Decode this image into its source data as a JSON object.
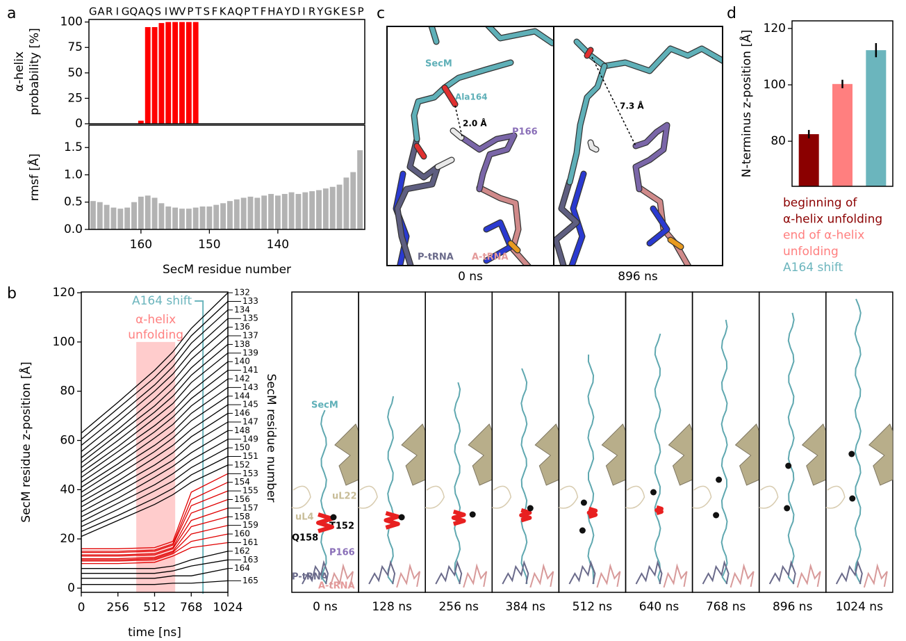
{
  "chart_data": [
    {
      "panel_label": "a",
      "type": "bar",
      "sequence": [
        "G",
        "A",
        "R",
        "I",
        "G",
        "Q",
        "A",
        "Q",
        "S",
        "I",
        "W",
        "V",
        "P",
        "T",
        "S",
        "F",
        "K",
        "A",
        "Q",
        "P",
        "T",
        "F",
        "H",
        "A",
        "Y",
        "D",
        "I",
        "R",
        "Y",
        "G",
        "K",
        "E",
        "S",
        "P"
      ],
      "x": [
        167,
        166,
        165,
        164,
        163,
        162,
        161,
        160,
        159,
        158,
        157,
        156,
        155,
        154,
        153,
        152,
        151,
        150,
        149,
        148,
        147,
        146,
        145,
        144,
        143,
        142,
        141,
        140,
        139,
        138,
        137,
        136,
        135,
        134,
        133,
        132,
        131,
        130,
        129,
        128
      ],
      "values": [
        0,
        0,
        0,
        0,
        0,
        0,
        0,
        3,
        95,
        95,
        99,
        100,
        100,
        100,
        100,
        100,
        0,
        0,
        0,
        0,
        0,
        0,
        0,
        0,
        0,
        0,
        0,
        0,
        0,
        0,
        0,
        0,
        0,
        0,
        0,
        0,
        0,
        0,
        0,
        0
      ],
      "color": "#ff0000",
      "ylabel": [
        "α-helix",
        "probability [%]"
      ],
      "xlim": [
        167.6,
        127.3
      ],
      "ylim": [
        0,
        102.5
      ],
      "yticks": [
        0,
        25,
        50,
        75,
        100
      ]
    },
    {
      "type": "bar",
      "x": [
        167,
        166,
        165,
        164,
        163,
        162,
        161,
        160,
        159,
        158,
        157,
        156,
        155,
        154,
        153,
        152,
        151,
        150,
        149,
        148,
        147,
        146,
        145,
        144,
        143,
        142,
        141,
        140,
        139,
        138,
        137,
        136,
        135,
        134,
        133,
        132,
        131,
        130,
        129,
        128
      ],
      "values": [
        0.52,
        0.5,
        0.45,
        0.4,
        0.38,
        0.4,
        0.5,
        0.6,
        0.62,
        0.58,
        0.48,
        0.42,
        0.4,
        0.38,
        0.38,
        0.4,
        0.42,
        0.42,
        0.45,
        0.48,
        0.52,
        0.55,
        0.58,
        0.6,
        0.58,
        0.62,
        0.65,
        0.62,
        0.65,
        0.68,
        0.65,
        0.68,
        0.7,
        0.72,
        0.75,
        0.78,
        0.82,
        0.95,
        1.05,
        1.45
      ],
      "color": "#b3b3b3",
      "ylabel": "rmsf [Å]",
      "xlabel": "SecM residue number",
      "xlim": [
        167.6,
        127.3
      ],
      "xticks": [
        160,
        150,
        140
      ],
      "ylim": [
        0,
        1.91
      ],
      "yticks": [
        {
          "value": 0,
          "label": "0.0"
        },
        {
          "value": 0.5,
          "label": "0.5"
        },
        {
          "value": 1,
          "label": "1.0"
        },
        {
          "value": 1.5,
          "label": "1.5"
        }
      ]
    },
    {
      "panel_label": "b",
      "type": "line",
      "x": [
        0,
        256,
        512,
        640,
        768,
        1024
      ],
      "xlim": [
        0,
        1024
      ],
      "xticks": [
        0,
        256,
        512,
        768,
        1024
      ],
      "ylim": [
        -1.7,
        120.3
      ],
      "yticks": [
        0,
        20,
        40,
        60,
        80,
        100,
        120
      ],
      "xlabel": "time [ns]",
      "ylabel": "SecM residue z-position [Å]",
      "y2label": "SecM residue number",
      "annotations": [
        {
          "text": [
            "A164 shift"
          ],
          "x": 850,
          "color": "#6bb5bd"
        },
        {
          "text": [
            "α-helix",
            "unfolding"
          ],
          "x": [
            384,
            656
          ],
          "y": 100,
          "color": "#ff8080"
        }
      ],
      "series": [
        {
          "name": "132",
          "color": "#000000",
          "values": [
            63,
            75.5,
            88.5,
            96,
            105.5,
            120
          ]
        },
        {
          "name": "133",
          "color": "#000000",
          "values": [
            60.5,
            73,
            85.5,
            93,
            102.5,
            116.5
          ]
        },
        {
          "name": "134",
          "color": "#000000",
          "values": [
            58,
            70,
            82.5,
            90,
            99.5,
            113
          ]
        },
        {
          "name": "135",
          "color": "#000000",
          "values": [
            55.5,
            67.5,
            80,
            87,
            96,
            109.5
          ]
        },
        {
          "name": "136",
          "color": "#000000",
          "values": [
            53,
            64.5,
            77,
            84,
            93,
            106
          ]
        },
        {
          "name": "137",
          "color": "#000000",
          "values": [
            51,
            62.5,
            74,
            81,
            89.5,
            102.5
          ]
        },
        {
          "name": "138",
          "color": "#000000",
          "values": [
            49,
            60,
            71.5,
            78,
            86.5,
            99
          ]
        },
        {
          "name": "139",
          "color": "#000000",
          "values": [
            47,
            57.5,
            69,
            75,
            83.5,
            95.5
          ]
        },
        {
          "name": "140",
          "color": "#000000",
          "values": [
            45,
            55.5,
            66,
            72,
            80,
            92
          ]
        },
        {
          "name": "141",
          "color": "#000000",
          "values": [
            43,
            53,
            63.5,
            69.5,
            77,
            88.5
          ]
        },
        {
          "name": "142",
          "color": "#000000",
          "values": [
            41,
            50.5,
            61,
            66.5,
            74,
            85
          ]
        },
        {
          "name": "143",
          "color": "#000000",
          "values": [
            39,
            48.5,
            58,
            63.5,
            71,
            81.5
          ]
        },
        {
          "name": "144",
          "color": "#000000",
          "values": [
            37,
            46,
            55.5,
            61,
            68,
            78
          ]
        },
        {
          "name": "145",
          "color": "#000000",
          "values": [
            35,
            43.5,
            53,
            58,
            64.5,
            74.5
          ]
        },
        {
          "name": "146",
          "color": "#000000",
          "values": [
            33,
            41.5,
            50,
            55,
            61.5,
            71
          ]
        },
        {
          "name": "147",
          "color": "#000000",
          "values": [
            31,
            39,
            47.5,
            52,
            58.5,
            67.5
          ]
        },
        {
          "name": "148",
          "color": "#000000",
          "values": [
            29,
            36.5,
            45,
            49.5,
            55,
            64
          ]
        },
        {
          "name": "149",
          "color": "#000000",
          "values": [
            27,
            34.5,
            42,
            46.5,
            52,
            60.5
          ]
        },
        {
          "name": "150",
          "color": "#000000",
          "values": [
            25,
            32,
            39.5,
            43.5,
            49,
            57
          ]
        },
        {
          "name": "151",
          "color": "#000000",
          "values": [
            23,
            29.5,
            36.5,
            40.5,
            46,
            53.5
          ]
        },
        {
          "name": "152",
          "color": "#000000",
          "values": [
            21,
            27.5,
            34,
            38,
            43,
            50
          ]
        },
        {
          "name": "153",
          "color": "#e00000",
          "values": [
            16,
            16,
            16.5,
            19,
            39,
            46.5
          ]
        },
        {
          "name": "154",
          "color": "#e00000",
          "values": [
            15,
            15,
            15.5,
            18,
            36,
            43
          ]
        },
        {
          "name": "155",
          "color": "#e00000",
          "values": [
            14.5,
            14.5,
            15,
            17.5,
            33.5,
            39.5
          ]
        },
        {
          "name": "156",
          "color": "#e00000",
          "values": [
            13.5,
            13.5,
            14,
            16.5,
            30.5,
            36
          ]
        },
        {
          "name": "157",
          "color": "#e00000",
          "values": [
            13,
            13,
            13.5,
            16,
            27.5,
            32.5
          ]
        },
        {
          "name": "158",
          "color": "#e00000",
          "values": [
            12,
            12,
            12.5,
            15,
            25,
            29
          ]
        },
        {
          "name": "159",
          "color": "#e00000",
          "values": [
            11.5,
            11.5,
            12,
            14.5,
            22,
            25.5
          ]
        },
        {
          "name": "160",
          "color": "#e00000",
          "values": [
            11,
            11,
            11.5,
            14,
            19,
            22
          ]
        },
        {
          "name": "161",
          "color": "#e00000",
          "values": [
            10,
            10,
            10.5,
            13,
            16.5,
            18.5
          ]
        },
        {
          "name": "162",
          "color": "#000000",
          "values": [
            8,
            8,
            8,
            9,
            11.5,
            15
          ]
        },
        {
          "name": "163",
          "color": "#000000",
          "values": [
            6,
            6,
            6,
            7,
            9,
            11.5
          ]
        },
        {
          "name": "164",
          "color": "#000000",
          "values": [
            4,
            4,
            4,
            5,
            5,
            8
          ]
        },
        {
          "name": "165",
          "color": "#000000",
          "values": [
            1.5,
            1.5,
            1.5,
            2,
            2,
            3
          ]
        }
      ]
    },
    {
      "panel_label": "d",
      "type": "bar",
      "categories": [
        [
          "beginning of",
          "α-helix unfolding"
        ],
        [
          "end of α-helix",
          "unfolding"
        ],
        [
          "A164 shift"
        ]
      ],
      "values": [
        82.5,
        100.3,
        112.3
      ],
      "errors": [
        1.5,
        1.5,
        2.5
      ],
      "colors": [
        "#8b0000",
        "#ff7f7f",
        "#6bb5bd"
      ],
      "legend": "below",
      "ylabel": "N-terminus z-position [Å]",
      "ylim": [
        64,
        122.7
      ],
      "yticks": [
        80,
        100,
        120
      ]
    }
  ],
  "structure_panel": {
    "panel_label": "c",
    "times": [
      "0 ns",
      "896 ns"
    ],
    "labels": {
      "secm": "SecM",
      "ala164": "Ala164",
      "distance_0": "2.0 Å",
      "p166": "P166",
      "p_trna": "P-tRNA",
      "a_trna": "A-tRNA",
      "distance_896": "7.3 Å"
    }
  },
  "snapshots": {
    "times": [
      "0 ns",
      "128 ns",
      "256 ns",
      "384 ns",
      "512 ns",
      "640 ns",
      "768 ns",
      "896 ns",
      "1024 ns"
    ],
    "labels": {
      "secm": "SecM",
      "ul22": "uL22",
      "ul4": "uL4",
      "t152": "T152",
      "q158": "Q158",
      "p166": "P166",
      "p_trna": "P-tRNA",
      "a_trna": "A-tRNA"
    }
  }
}
